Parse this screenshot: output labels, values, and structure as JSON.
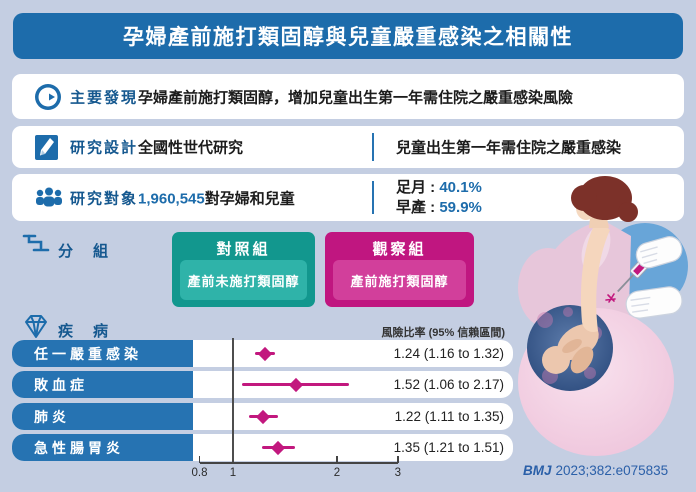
{
  "colors": {
    "background": "#c4cee2",
    "primary_blue": "#1d6cab",
    "bar_blue": "#2673b2",
    "teal": "#12978e",
    "teal_inner": "#2fb3a9",
    "magenta": "#c01680",
    "magenta_inner": "#d23f9b",
    "marker": "#c2187e",
    "citation_blue": "#2a5fa8"
  },
  "title": "孕婦產前施打類固醇與兒童嚴重感染之相關性",
  "key_findings": {
    "label": "主要發現",
    "text": "孕婦產前施打類固醇，增加兒童出生第一年需住院之嚴重感染風險"
  },
  "study_design": {
    "label": "研究設計",
    "type": "全國性世代研究",
    "outcome": "兒童出生第一年需住院之嚴重感染"
  },
  "participants": {
    "label": "研究對象",
    "count": "1,960,545",
    "count_suffix": "對孕婦和兒童",
    "full_term_label": "足月 : ",
    "full_term_value": "40.1%",
    "preterm_label": "早產 : ",
    "preterm_value": "59.9%"
  },
  "groups": {
    "label": "分組",
    "control": {
      "title": "對照組",
      "description": "產前未施打類固醇"
    },
    "observation": {
      "title": "觀察組",
      "description": "產前施打類固醇"
    }
  },
  "diseases": {
    "label": "疾病",
    "column_header": "風險比率 (95% 信賴區間)"
  },
  "chart_data": {
    "type": "scatter",
    "subtype": "forest-plot",
    "title": "風險比率 (95% 信賴區間)",
    "categories": [
      "任一嚴重感染",
      "敗血症",
      "肺炎",
      "急性腸胃炎"
    ],
    "values": [
      1.24,
      1.52,
      1.22,
      1.35
    ],
    "ci_low": [
      1.16,
      1.06,
      1.11,
      1.21
    ],
    "ci_high": [
      1.32,
      2.17,
      1.35,
      1.51
    ],
    "value_labels": [
      "1.24 (1.16 to 1.32)",
      "1.52 (1.06 to 2.17)",
      "1.22 (1.11 to 1.35)",
      "1.35 (1.21 to 1.51)"
    ],
    "x_scale": "log",
    "x_ticks": [
      "0.8",
      "1",
      "2",
      "3"
    ],
    "x_tick_values": [
      0.8,
      1,
      2,
      3
    ],
    "xlim": [
      0.8,
      3
    ],
    "reference_line": 1,
    "marker_color": "#c2187e",
    "legend_position": "none",
    "grid": false
  },
  "citation": {
    "journal": "BMJ",
    "reference": "2023;382:e075835"
  }
}
